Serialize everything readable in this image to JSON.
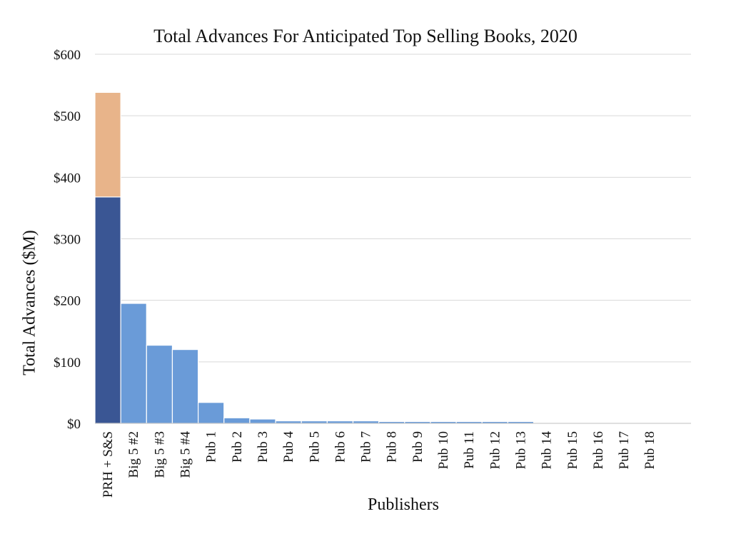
{
  "chart_data": {
    "type": "bar",
    "stacked": true,
    "title": "Total Advances For Anticipated Top Selling Books, 2020",
    "xlabel": "Publishers",
    "ylabel": "Total Advances ($M)",
    "ylim": [
      0,
      600
    ],
    "yticks": [
      "$0",
      "$100",
      "$200",
      "$300",
      "$400",
      "$500",
      "$600"
    ],
    "ytick_values": [
      0,
      100,
      200,
      300,
      400,
      500,
      600
    ],
    "grid": true,
    "categories": [
      "PRH + S&S",
      "Big 5 #2",
      "Big 5 #3",
      "Big 5 #4",
      "Pub 1",
      "Pub 2",
      "Pub 3",
      "Pub 4",
      "Pub 5",
      "Pub 6",
      "Pub 7",
      "Pub 8",
      "Pub 9",
      "Pub 10",
      "Pub 11",
      "Pub 12",
      "Pub 13",
      "Pub 14",
      "Pub 15",
      "Pub 16",
      "Pub 17",
      "Pub 18"
    ],
    "series": [
      {
        "values": [
          368,
          0,
          0,
          0,
          0,
          0,
          0,
          0,
          0,
          0,
          0,
          0,
          0,
          0,
          0,
          0,
          0,
          0,
          0,
          0,
          0,
          0
        ],
        "color": "#3a5694"
      },
      {
        "values": [
          170,
          0,
          0,
          0,
          0,
          0,
          0,
          0,
          0,
          0,
          0,
          0,
          0,
          0,
          0,
          0,
          0,
          0,
          0,
          0,
          0,
          0
        ],
        "color": "#e8b48a"
      },
      {
        "values": [
          0,
          195,
          127,
          120,
          34,
          9,
          7,
          4,
          4,
          4,
          4,
          3,
          3,
          3,
          3,
          3,
          3,
          0,
          0,
          0,
          0,
          0
        ],
        "color": "#6a9bd8"
      }
    ],
    "colors": {
      "grid": "#d9d9d9",
      "axis": "#bfbfbf",
      "bar_border": "#ffffff"
    }
  }
}
